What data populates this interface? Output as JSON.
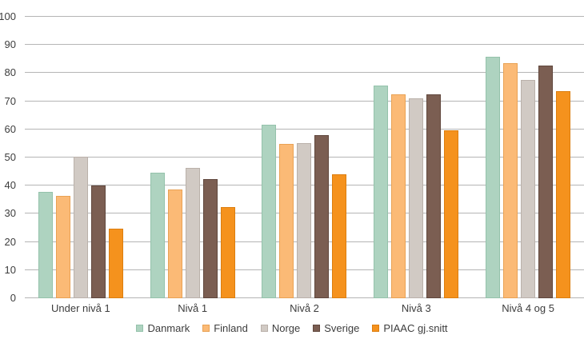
{
  "chart_data": {
    "type": "bar",
    "title": "",
    "categories": [
      "Under nivå 1",
      "Nivå 1",
      "Nivå 2",
      "Nivå 3",
      "Nivå 4 og 5"
    ],
    "series": [
      {
        "name": "Danmark",
        "color": "#aed3c0",
        "border_color": "#94c2ab",
        "values": [
          37.8,
          44.6,
          61.6,
          75.6,
          85.8
        ]
      },
      {
        "name": "Finland",
        "color": "#fbba76",
        "border_color": "#e9a254",
        "values": [
          36.5,
          38.6,
          54.8,
          72.5,
          83.6
        ]
      },
      {
        "name": "Norge",
        "color": "#d1cac4",
        "border_color": "#bab1aa",
        "values": [
          50.2,
          46.3,
          55.0,
          71.0,
          77.7
        ]
      },
      {
        "name": "Sverige",
        "color": "#7b5e52",
        "border_color": "#60473d",
        "values": [
          40.1,
          42.4,
          58.0,
          72.4,
          82.6
        ]
      },
      {
        "name": "PIAAC gj.snitt",
        "color": "#f5921d",
        "border_color": "#dc7e0f",
        "values": [
          24.7,
          32.4,
          44.1,
          59.8,
          73.7
        ]
      }
    ],
    "y_axis": {
      "min": 0,
      "max": 100,
      "step": 10,
      "tick_labels": [
        "0",
        "10",
        "20",
        "30",
        "40",
        "50",
        "60",
        "70",
        "80",
        "90",
        "100"
      ]
    },
    "xlabel": "",
    "ylabel": "",
    "grid": true,
    "legend_position": "bottom"
  },
  "styles": {
    "background_color": "#ffffff",
    "gridline_color": "#b5b5b5",
    "text_color": "#3d3d3d"
  }
}
